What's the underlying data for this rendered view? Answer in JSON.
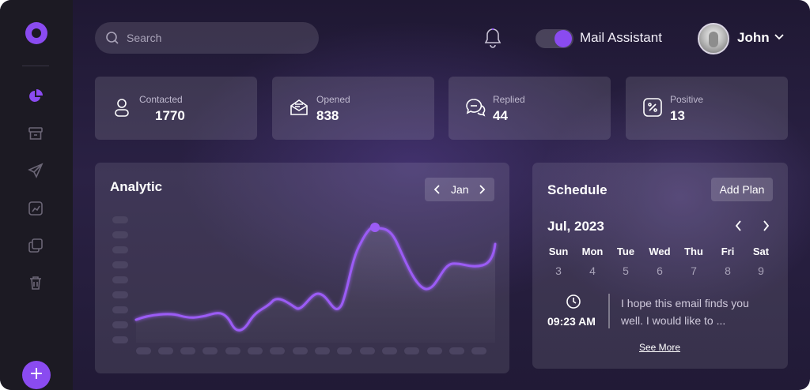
{
  "search": {
    "placeholder": "Search"
  },
  "header": {
    "toggle_label": "Mail Assistant",
    "user_name": "John"
  },
  "stats": [
    {
      "label": "Contacted",
      "value": "1770",
      "icon": "user-icon"
    },
    {
      "label": "Opened",
      "value": "838",
      "icon": "open-mail-icon"
    },
    {
      "label": "Replied",
      "value": "44",
      "icon": "reply-chat-icon"
    },
    {
      "label": "Positive",
      "value": "13",
      "icon": "percent-icon"
    }
  ],
  "analytic": {
    "title": "Analytic",
    "month": "Jan"
  },
  "schedule": {
    "title": "Schedule",
    "add_plan": "Add Plan",
    "month": "Jul, 2023",
    "weekdays": [
      "Sun",
      "Mon",
      "Tue",
      "Wed",
      "Thu",
      "Fri",
      "Sat"
    ],
    "days": [
      "3",
      "4",
      "5",
      "6",
      "7",
      "8",
      "9"
    ],
    "event": {
      "time": "09:23 AM",
      "text": "I hope this email finds you well. I would like to ..."
    },
    "see_more": "See More"
  },
  "colors": {
    "accent": "#8a4bf0",
    "sidebar": "#1c1a23"
  }
}
